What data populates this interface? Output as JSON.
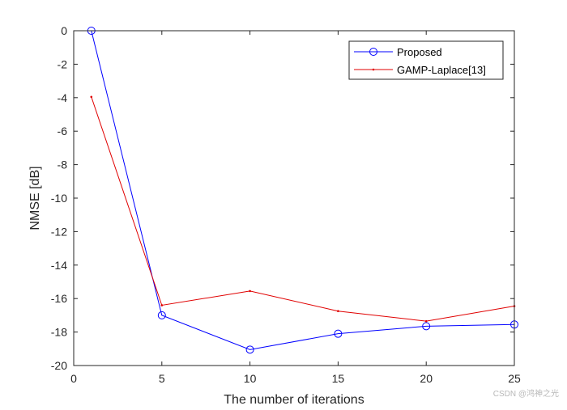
{
  "chart_data": {
    "type": "line",
    "title": "",
    "xlabel": "The number of iterations",
    "ylabel": "NMSE [dB]",
    "xlim": [
      0,
      25
    ],
    "ylim": [
      -20,
      0
    ],
    "xticks": [
      0,
      5,
      10,
      15,
      20,
      25
    ],
    "yticks": [
      0,
      -2,
      -4,
      -6,
      -8,
      -10,
      -12,
      -14,
      -16,
      -18,
      -20
    ],
    "grid": false,
    "legend_position": "top-right",
    "series": [
      {
        "name": "Proposed",
        "color": "#0000ff",
        "marker": "circle",
        "x": [
          1,
          5,
          10,
          15,
          20,
          25
        ],
        "y": [
          0,
          -17.0,
          -19.05,
          -18.1,
          -17.65,
          -17.55
        ]
      },
      {
        "name": "GAMP-Laplace[13]",
        "color": "#e00000",
        "marker": "point",
        "x": [
          1,
          5,
          10,
          15,
          20,
          25
        ],
        "y": [
          -3.95,
          -16.4,
          -15.55,
          -16.75,
          -17.35,
          -16.45
        ]
      }
    ]
  },
  "watermark": "CSDN @鸿神之光"
}
